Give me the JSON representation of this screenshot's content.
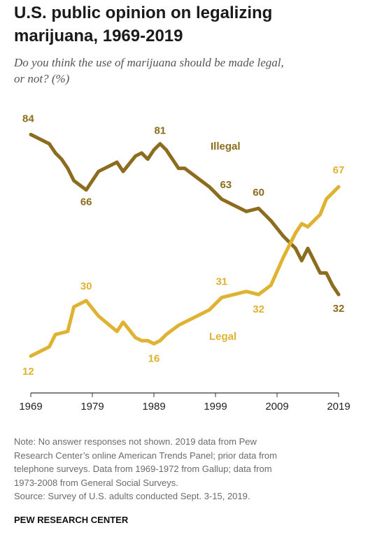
{
  "title_line1": "U.S. public opinion on legalizing",
  "title_line2": "marijuana, 1969-2019",
  "subtitle_line1": "Do you think the use of marijuana should be made legal,",
  "subtitle_line2": "or not? (%)",
  "note_lines": [
    "Note: No answer responses not shown. 2019 data from Pew",
    "Research Center’s online American Trends Panel; prior data from",
    "telephone surveys. Data from 1969-1972 from Gallup; data from",
    "1973-2008 from General Social Surveys.",
    "Source: Survey of U.S. adults conducted Sept. 3-15, 2019."
  ],
  "brand": "PEW RESEARCH CENTER",
  "colors": {
    "illegal": "#8c6d1f",
    "legal": "#e0b232",
    "axis": "#333333"
  },
  "chart_data": {
    "type": "line",
    "xlim": [
      1969,
      2019
    ],
    "ylim": [
      0,
      100
    ],
    "x_ticks": [
      1969,
      1979,
      1989,
      1999,
      2009,
      2019
    ],
    "grid": false,
    "series": [
      {
        "name": "Illegal",
        "color": "#8c6d1f",
        "points": [
          [
            1969,
            84
          ],
          [
            1972,
            81
          ],
          [
            1973,
            78
          ],
          [
            1974,
            76
          ],
          [
            1975,
            73
          ],
          [
            1976,
            69
          ],
          [
            1978,
            66
          ],
          [
            1980,
            72
          ],
          [
            1983,
            75
          ],
          [
            1984,
            72
          ],
          [
            1986,
            77
          ],
          [
            1987,
            78
          ],
          [
            1988,
            76
          ],
          [
            1989,
            79
          ],
          [
            1990,
            81
          ],
          [
            1991,
            79
          ],
          [
            1993,
            73
          ],
          [
            1994,
            73
          ],
          [
            1996,
            70
          ],
          [
            1998,
            67
          ],
          [
            2000,
            63
          ],
          [
            2002,
            61
          ],
          [
            2004,
            59
          ],
          [
            2006,
            60
          ],
          [
            2008,
            56
          ],
          [
            2010,
            51
          ],
          [
            2012,
            47
          ],
          [
            2013,
            43
          ],
          [
            2014,
            47
          ],
          [
            2016,
            39
          ],
          [
            2017,
            39
          ],
          [
            2018,
            35
          ],
          [
            2019,
            32
          ]
        ]
      },
      {
        "name": "Legal",
        "color": "#e0b232",
        "points": [
          [
            1969,
            12
          ],
          [
            1972,
            15
          ],
          [
            1973,
            19
          ],
          [
            1975,
            20
          ],
          [
            1976,
            28
          ],
          [
            1978,
            30
          ],
          [
            1980,
            25
          ],
          [
            1983,
            20
          ],
          [
            1984,
            23
          ],
          [
            1986,
            18
          ],
          [
            1987,
            17
          ],
          [
            1988,
            17
          ],
          [
            1989,
            16
          ],
          [
            1990,
            17
          ],
          [
            1991,
            19
          ],
          [
            1993,
            22
          ],
          [
            1994,
            23
          ],
          [
            1996,
            25
          ],
          [
            1998,
            27
          ],
          [
            2000,
            31
          ],
          [
            2002,
            32
          ],
          [
            2004,
            33
          ],
          [
            2006,
            32
          ],
          [
            2008,
            35
          ],
          [
            2010,
            44
          ],
          [
            2012,
            52
          ],
          [
            2013,
            55
          ],
          [
            2014,
            54
          ],
          [
            2016,
            58
          ],
          [
            2017,
            63
          ],
          [
            2018,
            65
          ],
          [
            2019,
            67
          ]
        ]
      }
    ],
    "value_labels": [
      {
        "series": "Illegal",
        "text": "84",
        "x": 1969,
        "y": 84
      },
      {
        "series": "Illegal",
        "text": "66",
        "x": 1978,
        "y": 66
      },
      {
        "series": "Illegal",
        "text": "81",
        "x": 1990,
        "y": 81
      },
      {
        "series": "Illegal",
        "text": "63",
        "x": 2000,
        "y": 63
      },
      {
        "series": "Illegal",
        "text": "60",
        "x": 2006,
        "y": 60
      },
      {
        "series": "Illegal",
        "text": "32",
        "x": 2019,
        "y": 32
      },
      {
        "series": "Legal",
        "text": "12",
        "x": 1969,
        "y": 12
      },
      {
        "series": "Legal",
        "text": "30",
        "x": 1978,
        "y": 30
      },
      {
        "series": "Legal",
        "text": "16",
        "x": 1989,
        "y": 16
      },
      {
        "series": "Legal",
        "text": "31",
        "x": 2000,
        "y": 31
      },
      {
        "series": "Legal",
        "text": "32",
        "x": 2006,
        "y": 32
      },
      {
        "series": "Legal",
        "text": "67",
        "x": 2019,
        "y": 67
      }
    ],
    "series_labels": [
      {
        "text": "Illegal",
        "series": "Illegal"
      },
      {
        "text": "Legal",
        "series": "Legal"
      }
    ]
  }
}
